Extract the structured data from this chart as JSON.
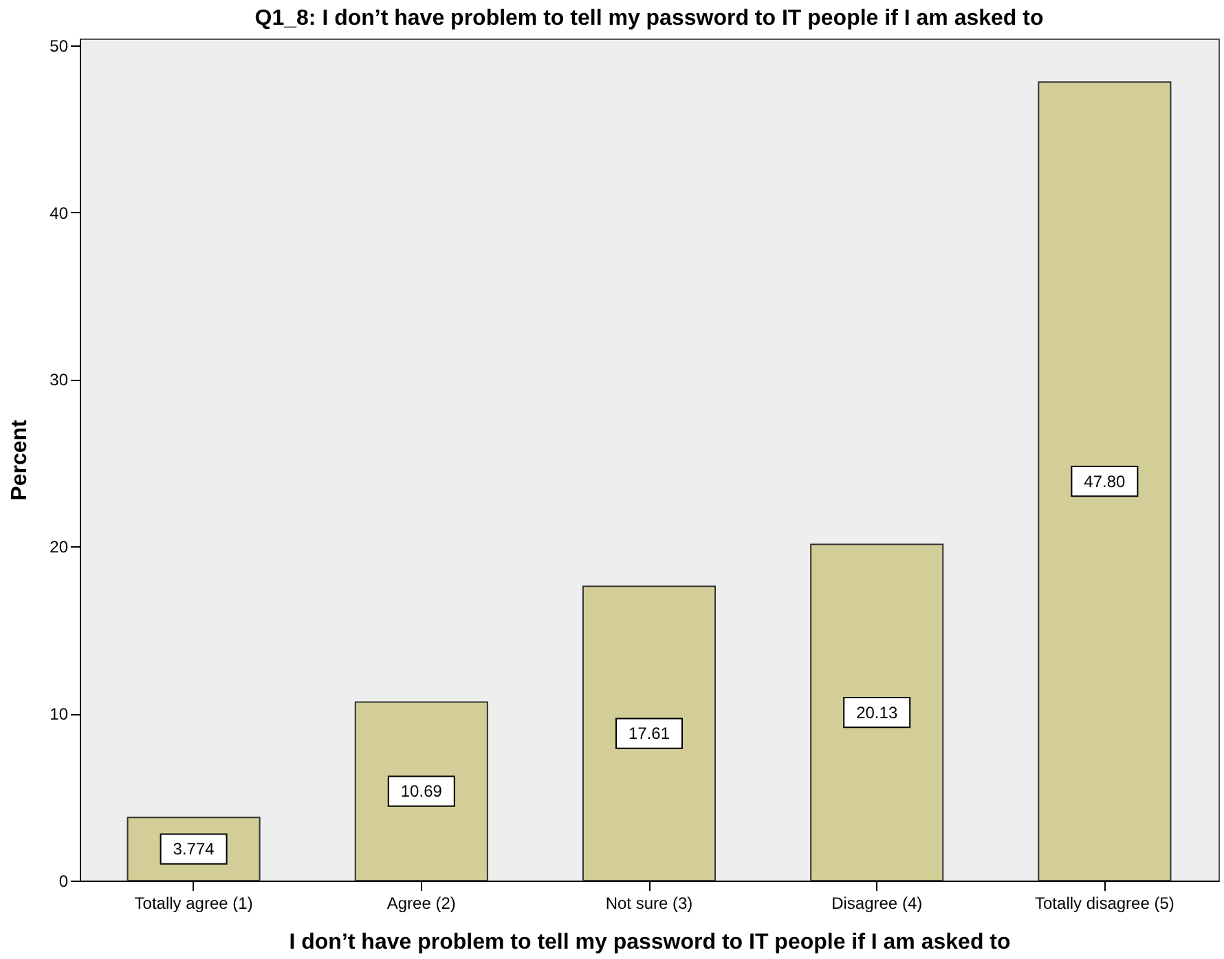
{
  "chart_data": {
    "type": "bar",
    "title": "Q1_8: I don’t have problem to tell my password to IT people if I am asked to",
    "xlabel": "I don’t have problem to tell my password to IT people if I am asked to",
    "ylabel": "Percent",
    "categories": [
      "Totally agree (1)",
      "Agree (2)",
      "Not sure (3)",
      "Disagree (4)",
      "Totally disagree (5)"
    ],
    "values": [
      3.774,
      10.69,
      17.61,
      20.13,
      47.8
    ],
    "value_labels": [
      "3.774",
      "10.69",
      "17.61",
      "20.13",
      "47.80"
    ],
    "color": "#d3ce97",
    "ylim": [
      0,
      50.4
    ],
    "yticks": [
      0,
      10,
      20,
      30,
      40,
      50
    ],
    "grid": false
  }
}
